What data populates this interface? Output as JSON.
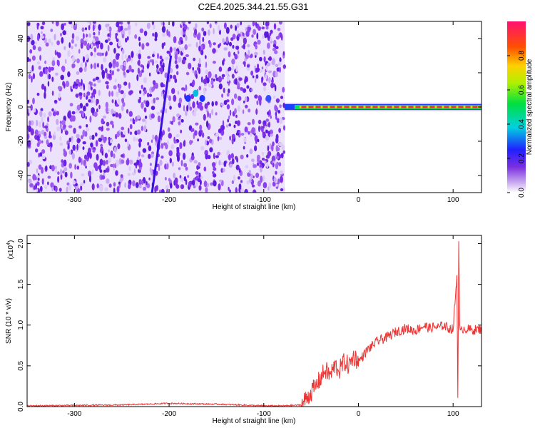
{
  "title": "C2E4.2025.344.21.55.G31",
  "chart_data": [
    {
      "type": "heatmap",
      "xlabel": "Height of straight line (km)",
      "ylabel": "Frequency (Hz)",
      "xlim": [
        -350,
        130
      ],
      "ylim": [
        -50,
        50
      ],
      "xticks": [
        -300,
        -200,
        -100,
        0,
        100
      ],
      "yticks": [
        -40,
        -20,
        0,
        20,
        40
      ],
      "noise_region_x": [
        -350,
        -78
      ],
      "signal_band": {
        "x": [
          -78,
          130
        ],
        "frequency_hz": 0
      },
      "colorbar": {
        "label": "Normalized spectral amplitude",
        "range": [
          0.0,
          1.0
        ],
        "ticks": [
          0.0,
          0.2,
          0.4,
          0.6,
          0.8
        ]
      }
    },
    {
      "type": "line",
      "xlabel": "Height of straight line (km)",
      "ylabel": "SNR (10 * v/v)",
      "multiplier": "(x10",
      "multiplier_exp": "4",
      "xlim": [
        -350,
        130
      ],
      "ylim": [
        0,
        2.1
      ],
      "xticks": [
        -300,
        -200,
        -100,
        0,
        100
      ],
      "yticks": [
        0.0,
        0.5,
        1.0,
        1.5,
        2.0
      ],
      "series": [
        {
          "name": "SNR",
          "color": "#ee3333",
          "x": [
            -350,
            -300,
            -250,
            -200,
            -150,
            -100,
            -80,
            -60,
            -55,
            -45,
            -40,
            -35,
            -30,
            -25,
            -20,
            -15,
            -10,
            -5,
            0,
            10,
            20,
            30,
            40,
            50,
            60,
            65,
            70,
            75,
            80,
            85,
            90,
            95,
            100,
            104,
            105,
            106,
            107,
            108,
            110,
            120,
            130
          ],
          "y": [
            0.01,
            0.015,
            0.02,
            0.04,
            0.03,
            0.01,
            0.01,
            0.02,
            0.1,
            0.25,
            0.35,
            0.45,
            0.38,
            0.5,
            0.45,
            0.55,
            0.5,
            0.62,
            0.55,
            0.7,
            0.8,
            0.85,
            0.92,
            0.96,
            0.93,
            0.97,
            0.99,
            0.96,
            0.98,
            0.97,
            1.0,
            0.96,
            0.95,
            1.6,
            0.1,
            2.05,
            0.97,
            0.9,
            0.96,
            0.94,
            0.95
          ]
        }
      ]
    }
  ]
}
